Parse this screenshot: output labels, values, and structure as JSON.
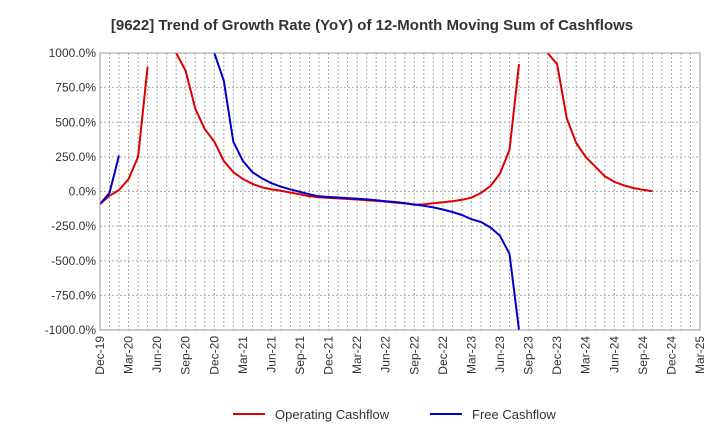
{
  "chart_data": {
    "type": "line",
    "title": "[9622]  Trend of Growth Rate (YoY) of 12-Month Moving Sum of Cashflows",
    "xlabel": "",
    "ylabel": "",
    "ylim": [
      -1000,
      1000
    ],
    "y_ticks": [
      1000,
      750,
      500,
      250,
      0,
      -250,
      -500,
      -750,
      -1000
    ],
    "y_tick_labels": [
      "1000.0%",
      "750.0%",
      "500.0%",
      "250.0%",
      "0.0%",
      "-250.0%",
      "-500.0%",
      "-750.0%",
      "-1000.0%"
    ],
    "x_tick_labels": [
      "Dec-19",
      "Mar-20",
      "Jun-20",
      "Sep-20",
      "Dec-20",
      "Mar-21",
      "Jun-21",
      "Sep-21",
      "Dec-21",
      "Mar-22",
      "Jun-22",
      "Sep-22",
      "Dec-22",
      "Mar-23",
      "Jun-23",
      "Sep-23",
      "Dec-23",
      "Mar-24",
      "Jun-24",
      "Sep-24",
      "Dec-24",
      "Mar-25"
    ],
    "grid": true,
    "legend_position": "bottom",
    "series": [
      {
        "name": "Operating Cashflow",
        "color": "#dd0000",
        "points": [
          [
            0,
            -90
          ],
          [
            1,
            -30
          ],
          [
            2,
            10
          ],
          [
            3,
            90
          ],
          [
            4,
            250
          ],
          [
            5,
            900
          ],
          [
            8,
            1000
          ],
          [
            9,
            870
          ],
          [
            10,
            600
          ],
          [
            11,
            450
          ],
          [
            12,
            360
          ],
          [
            13,
            220
          ],
          [
            14,
            140
          ],
          [
            15,
            90
          ],
          [
            16,
            55
          ],
          [
            17,
            30
          ],
          [
            18,
            15
          ],
          [
            19,
            5
          ],
          [
            20,
            -8
          ],
          [
            21,
            -20
          ],
          [
            22,
            -35
          ],
          [
            23,
            -42
          ],
          [
            24,
            -46
          ],
          [
            25,
            -50
          ],
          [
            26,
            -54
          ],
          [
            27,
            -58
          ],
          [
            28,
            -63
          ],
          [
            29,
            -68
          ],
          [
            30,
            -73
          ],
          [
            31,
            -80
          ],
          [
            32,
            -86
          ],
          [
            33,
            -95
          ],
          [
            34,
            -93
          ],
          [
            35,
            -85
          ],
          [
            36,
            -78
          ],
          [
            37,
            -70
          ],
          [
            38,
            -60
          ],
          [
            39,
            -45
          ],
          [
            40,
            -10
          ],
          [
            41,
            40
          ],
          [
            42,
            130
          ],
          [
            43,
            300
          ],
          [
            44,
            920
          ],
          [
            47,
            1000
          ],
          [
            48,
            920
          ],
          [
            49,
            530
          ],
          [
            50,
            350
          ],
          [
            51,
            250
          ],
          [
            52,
            180
          ],
          [
            53,
            110
          ],
          [
            54,
            70
          ],
          [
            55,
            45
          ],
          [
            56,
            25
          ],
          [
            57,
            12
          ],
          [
            58,
            2
          ]
        ]
      },
      {
        "name": "Free Cashflow",
        "color": "#0000cc",
        "points": [
          [
            0,
            -90
          ],
          [
            1,
            -10
          ],
          [
            2,
            260
          ],
          [
            12,
            1000
          ],
          [
            13,
            800
          ],
          [
            14,
            360
          ],
          [
            15,
            220
          ],
          [
            16,
            140
          ],
          [
            17,
            95
          ],
          [
            18,
            60
          ],
          [
            19,
            35
          ],
          [
            20,
            15
          ],
          [
            21,
            -3
          ],
          [
            22,
            -20
          ],
          [
            23,
            -35
          ],
          [
            24,
            -40
          ],
          [
            25,
            -43
          ],
          [
            26,
            -48
          ],
          [
            27,
            -52
          ],
          [
            28,
            -57
          ],
          [
            29,
            -63
          ],
          [
            30,
            -70
          ],
          [
            31,
            -76
          ],
          [
            32,
            -84
          ],
          [
            33,
            -94
          ],
          [
            34,
            -103
          ],
          [
            35,
            -115
          ],
          [
            36,
            -130
          ],
          [
            37,
            -148
          ],
          [
            38,
            -170
          ],
          [
            39,
            -200
          ],
          [
            40,
            -220
          ],
          [
            41,
            -260
          ],
          [
            42,
            -320
          ],
          [
            43,
            -450
          ],
          [
            44,
            -1000
          ]
        ]
      }
    ],
    "breaks": [
      [
        5,
        8
      ],
      [
        2,
        12
      ],
      [
        44,
        47
      ]
    ]
  }
}
